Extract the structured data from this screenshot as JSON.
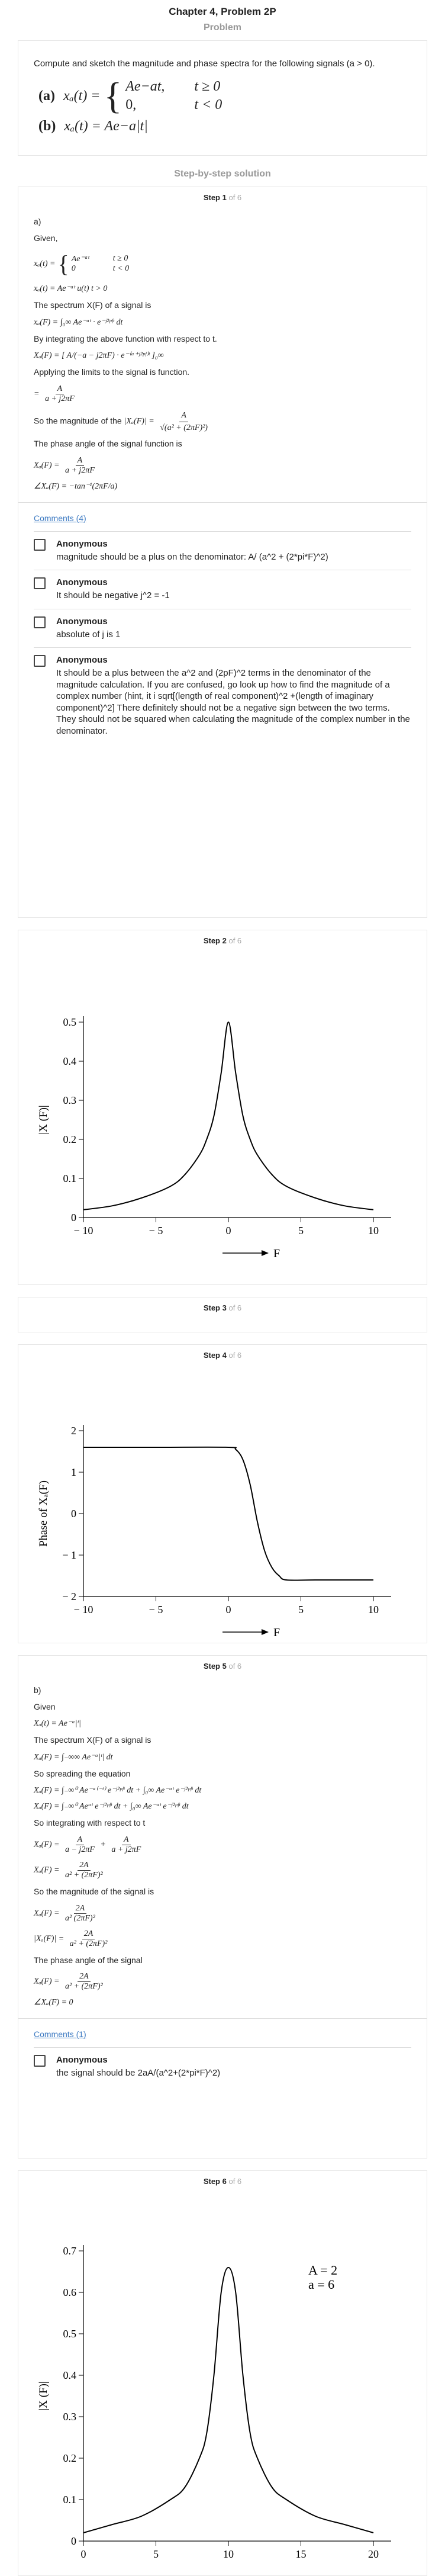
{
  "header": {
    "title": "Chapter 4, Problem 2P",
    "problem_label": "Problem"
  },
  "problem": {
    "text": "Compute and sketch the magnitude and phase spectra for the following signals (a > 0).",
    "part_a_tag": "(a)",
    "part_a_lhs": "xₐ(t) =",
    "part_a_case1_expr": "Ae−at,",
    "part_a_case1_cond": "t ≥ 0",
    "part_a_case2_expr": "0,",
    "part_a_case2_cond": "t < 0",
    "part_b_tag": "(b)",
    "part_b_expr": "xₐ(t) = Ae−a|t|"
  },
  "solution_heading": "Step-by-step solution",
  "step_of": "of 6",
  "steps": {
    "s1": {
      "label": "Step 1"
    },
    "s2": {
      "label": "Step 2"
    },
    "s3": {
      "label": "Step 3"
    },
    "s4": {
      "label": "Step 4"
    },
    "s5": {
      "label": "Step 5"
    },
    "s6": {
      "label": "Step 6"
    }
  },
  "step1": {
    "part": "a)",
    "given": "Given,",
    "eq_given_lhs": "xₐ(t) =",
    "eq_case1": "Ae⁻ᵃᵗ",
    "eq_case1_cond": "t ≥ 0",
    "eq_case2": "0",
    "eq_case2_cond": "t < 0",
    "eq_given2": "xₐ(t) = Ae⁻ᵃᵗ u(t)  t > 0",
    "spectrum_text": "The spectrum  X(F) of a signal is",
    "eq_spectrum": "xₐ(F) = ∫₀∞ Ae⁻ᵃᵗ · e⁻ʲ²ᵖᶠᵗ dt",
    "integrate_text": "By integrating the above function with respect to t.",
    "eq_integrated": "Xₐ(F) = [ A/(−a − j2πF) · e⁻⁽ᵃ⁺ʲ²ᵖᶠ⁾ᵗ ]₀∞",
    "limits_text": "Applying the limits to the signal is function.",
    "eq_limits_num": "A",
    "eq_limits_den": "a + j2πF",
    "magnitude_text": "So the magnitude of the",
    "eq_mag_lhs": "|Xₐ(F)| =",
    "eq_mag_num": "A",
    "eq_mag_den": "√(a² + (2πF)²)",
    "phase_text": "The phase angle of the signal function is",
    "eq_phase1_lhs": "Xₐ(F) =",
    "eq_phase1_num": "A",
    "eq_phase1_den": "a + j2πF",
    "eq_phase2": "∠Xₐ(F) = −tan⁻¹(2πF/a)",
    "comments_link": "Comments (4)",
    "comments": [
      {
        "author": "Anonymous",
        "text": "magnitude should be a plus on the denominator: A/ (a^2 + (2*pi*F)^2)"
      },
      {
        "author": "Anonymous",
        "text": "It should be negative j^2 = -1"
      },
      {
        "author": "Anonymous",
        "text": "absolute of j is 1"
      },
      {
        "author": "Anonymous",
        "text": "It should be a plus between the a^2 and (2pF)^2 terms in the denominator of the magnitude calculation. If you are confused, go look up how to find the magnitude of a complex number (hint, it i sqrt[(length of real component)^2 +(length of imaginary component)^2] There definitely should not be a negative sign between the two terms. They should not be squared when calculating the magnitude of the complex number in the denominator."
      }
    ]
  },
  "step5": {
    "part": "b)",
    "given": "Given",
    "eq_given": "Xₐ(t) = Ae⁻ᵃ|ᵗ|",
    "spectrum_text": "The spectrum  X(F) of a signal is",
    "eq_spectrum": "Xₐ(F) = ∫₋∞∞ Ae⁻ᵃ|ᵗ| dt",
    "spread_text": "So spreading the equation",
    "eq_spread1": "Xₐ(F) = ∫₋∞⁰ Ae⁻ᵃ⁽⁻ᵗ⁾ e⁻ʲ²ᵖᶠᵗ dt + ∫₀∞ Ae⁻ᵃᵗ e⁻ʲ²ᵖᶠᵗ dt",
    "eq_spread2": "Xₐ(F) = ∫₋∞⁰ Aeᵃᵗ e⁻ʲ²ᵖᶠᵗ dt + ∫₀∞ Ae⁻ᵃᵗ e⁻ʲ²ᵖᶠᵗ dt",
    "integrate_text": "So integrating with respect to t",
    "eq_int_lhs": "Xₐ(F) =",
    "eq_int_n1": "A",
    "eq_int_d1": "a − j2πF",
    "eq_int_n2": "A",
    "eq_int_d2": "a + j2πF",
    "eq_int2_lhs": "Xₐ(F) =",
    "eq_int2_num": "2A",
    "eq_int2_den": "a² + (2πF)²",
    "magnitude_text": "So the magnitude of the signal is",
    "eq_mag1_lhs": "Xₐ(F) =",
    "eq_mag1_num": "2A",
    "eq_mag1_den": "a² (2πF)²",
    "eq_mag2_lhs": "|Xₐ(F)| =",
    "eq_mag2_num": "2A",
    "eq_mag2_den": "a² + (2πF)²",
    "phase_text": "The phase angle of the signal",
    "eq_phase1_lhs": "Xₐ(F) =",
    "eq_phase1_num": "2A",
    "eq_phase1_den": "a² + (2πF)²",
    "eq_phase2": "∠Xₐ(F) = 0",
    "comments_link": "Comments (1)",
    "comments": [
      {
        "author": "Anonymous",
        "text": "the signal should be 2aA/(a^2+(2*pi*F)^2)"
      }
    ]
  },
  "chart_data": [
    {
      "type": "line",
      "title": "",
      "ylabel": "|X (F)|",
      "xlabel": "F",
      "xlim": [
        -10,
        10
      ],
      "ylim": [
        0,
        0.5
      ],
      "xticks": [
        "− 10",
        "− 5",
        "0",
        "5",
        "10"
      ],
      "yticks": [
        "0",
        "0.1",
        "0.2",
        "0.3",
        "0.4",
        "0.5"
      ],
      "series": [
        {
          "x": [
            -10,
            -8,
            -6,
            -4,
            -3,
            -2,
            -1.5,
            -1,
            -0.5,
            0,
            0.5,
            1,
            1.5,
            2,
            3,
            4,
            6,
            8,
            10
          ],
          "values": [
            0.02,
            0.03,
            0.05,
            0.08,
            0.11,
            0.16,
            0.2,
            0.26,
            0.37,
            0.5,
            0.37,
            0.26,
            0.2,
            0.16,
            0.11,
            0.08,
            0.05,
            0.03,
            0.02
          ]
        }
      ]
    },
    {
      "type": "line",
      "title": "",
      "ylabel": "Phase of Xₐ(F)",
      "xlabel": "F",
      "xlim": [
        -10,
        10
      ],
      "ylim": [
        -2,
        2
      ],
      "xticks": [
        "− 10",
        "− 5",
        "0",
        "5",
        "10"
      ],
      "yticks": [
        "− 2",
        "− 1",
        "0",
        "1",
        "2"
      ],
      "series": [
        {
          "x": [
            -10,
            -5,
            0,
            0.5,
            1,
            1.5,
            2,
            2.5,
            3,
            3.5,
            4,
            6,
            10
          ],
          "values": [
            1.6,
            1.6,
            1.6,
            1.55,
            1.3,
            0.7,
            -0.2,
            -0.9,
            -1.3,
            -1.5,
            -1.6,
            -1.6,
            -1.6
          ]
        }
      ]
    },
    {
      "type": "line",
      "title": "",
      "ylabel": "|X (F)|",
      "xlabel": "",
      "xlim": [
        0,
        20
      ],
      "ylim": [
        0,
        0.7
      ],
      "xticks": [
        "0",
        "5",
        "10",
        "15",
        "20"
      ],
      "yticks": [
        "0",
        "0.1",
        "0.2",
        "0.3",
        "0.4",
        "0.5",
        "0.6",
        "0.7"
      ],
      "annotations": [
        "A = 2",
        "a = 6"
      ],
      "series": [
        {
          "x": [
            0,
            2,
            4,
            6,
            7,
            8,
            8.5,
            9,
            9.5,
            10,
            10.5,
            11,
            11.5,
            12,
            13,
            14,
            16,
            18,
            20
          ],
          "values": [
            0.02,
            0.04,
            0.06,
            0.1,
            0.13,
            0.2,
            0.26,
            0.4,
            0.6,
            0.66,
            0.6,
            0.4,
            0.26,
            0.2,
            0.13,
            0.1,
            0.06,
            0.04,
            0.02
          ]
        }
      ]
    }
  ]
}
